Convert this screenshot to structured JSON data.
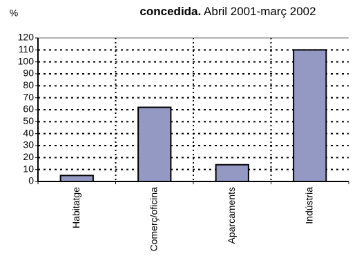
{
  "chart_data": {
    "type": "bar",
    "title_bold": "concedida.",
    "title": "Abril 2001-març 2002",
    "y_label": "%",
    "categories": [
      "Habitatge",
      "Comerç/oficina",
      "Aparcaments",
      "Indústria"
    ],
    "values": [
      5,
      62,
      14,
      110
    ],
    "color": "#9499c4",
    "ylim": [
      0,
      120
    ],
    "yticks": [
      0,
      10,
      20,
      30,
      40,
      50,
      60,
      70,
      80,
      90,
      100,
      110,
      120
    ],
    "grid": true
  }
}
